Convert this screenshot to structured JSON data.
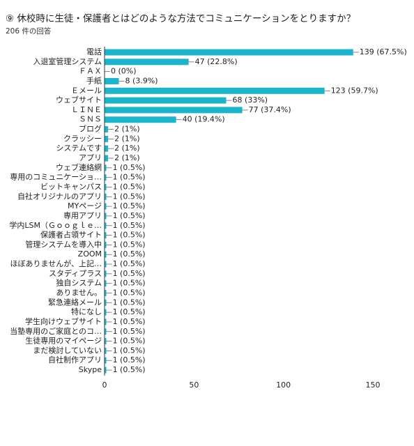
{
  "chart_data": {
    "type": "bar",
    "orientation": "horizontal",
    "title": "⑨ 休校時に生徒・保護者とはどのような方法でコミュニケーションをとりますか？",
    "subtitle": "206 件の回答",
    "categories": [
      "電話",
      "入退室管理システム",
      "ＦＡＸ",
      "手紙",
      "Ｅメール",
      "ウェブサイト",
      "ＬＩＮＥ",
      "ＳＮＳ",
      "ブログ",
      "クラッシー",
      "システムです",
      "アプリ",
      "ウェブ連絡網",
      "専用のコミュニケーショ…",
      "ビットキャンパス",
      "自社オリジナルのアプリ",
      "MYページ",
      "専用アプリ",
      "学内LSM（Ｇｏｏｇｌｅ…",
      "保護者占領サイト",
      "管理システムを導入中",
      "ZOOM",
      "ほぼありませんが、上記…",
      "スタディプラス",
      "独自システム",
      "ありません。",
      "緊急連絡メール",
      "特になし",
      "学生向けウェブサイト",
      "当塾専用のご家庭とのコ…",
      "生徒専用のマイページ",
      "まだ検討していない",
      "自社制作アプリ",
      "Skype"
    ],
    "values": [
      139,
      47,
      0,
      8,
      123,
      68,
      77,
      40,
      2,
      2,
      2,
      2,
      1,
      1,
      1,
      1,
      1,
      1,
      1,
      1,
      1,
      1,
      1,
      1,
      1,
      1,
      1,
      1,
      1,
      1,
      1,
      1,
      1,
      1
    ],
    "value_labels": [
      "139 (67.5%)",
      "47 (22.8%)",
      "0 (0%)",
      "8 (3.9%)",
      "123 (59.7%)",
      "68 (33%)",
      "77 (37.4%)",
      "40 (19.4%)",
      "2 (1%)",
      "2 (1%)",
      "2 (1%)",
      "2 (1%)",
      "1 (0.5%)",
      "1 (0.5%)",
      "1 (0.5%)",
      "1 (0.5%)",
      "1 (0.5%)",
      "1 (0.5%)",
      "1 (0.5%)",
      "1 (0.5%)",
      "1 (0.5%)",
      "1 (0.5%)",
      "1 (0.5%)",
      "1 (0.5%)",
      "1 (0.5%)",
      "1 (0.5%)",
      "1 (0.5%)",
      "1 (0.5%)",
      "1 (0.5%)",
      "1 (0.5%)",
      "1 (0.5%)",
      "1 (0.5%)",
      "1 (0.5%)",
      "1 (0.5%)"
    ],
    "color": "#1ab4cc",
    "xlim": [
      0,
      150
    ],
    "xticks": [
      0,
      50,
      100,
      150
    ],
    "grid": false
  }
}
